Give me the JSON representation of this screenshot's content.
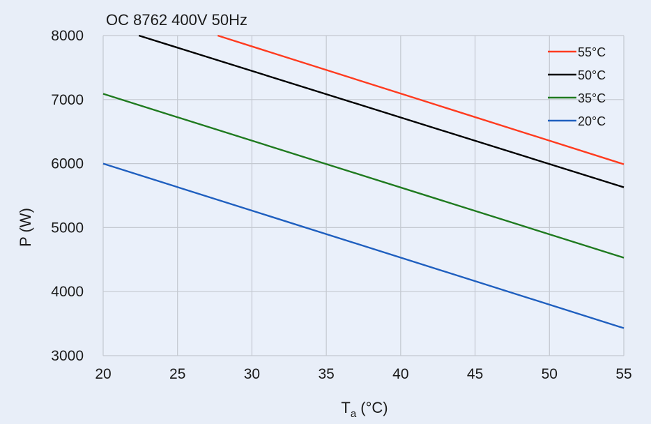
{
  "chart_data": {
    "type": "line",
    "title": "OC 8762 400V 50Hz",
    "xlabel_main": "T",
    "xlabel_sub": "a",
    "xlabel_unit": " (°C)",
    "ylabel": "P (W)",
    "xlim": [
      20,
      55
    ],
    "ylim": [
      3000,
      8000
    ],
    "x_ticks": [
      20,
      25,
      30,
      35,
      40,
      45,
      50,
      55
    ],
    "y_ticks": [
      3000,
      4000,
      5000,
      6000,
      7000,
      8000
    ],
    "grid": true,
    "legend_position": "top-right",
    "series": [
      {
        "name": "55°C",
        "color": "#ff3b1f",
        "x": [
          27.7,
          55
        ],
        "y": [
          8000,
          5990
        ]
      },
      {
        "name": "50°C",
        "color": "#000000",
        "x": [
          22.4,
          55
        ],
        "y": [
          8000,
          5630
        ]
      },
      {
        "name": "35°C",
        "color": "#1f7a1f",
        "x": [
          20,
          55
        ],
        "y": [
          7090,
          4530
        ]
      },
      {
        "name": "20°C",
        "color": "#1f5fbf",
        "x": [
          20,
          55
        ],
        "y": [
          6000,
          3430
        ]
      }
    ]
  }
}
